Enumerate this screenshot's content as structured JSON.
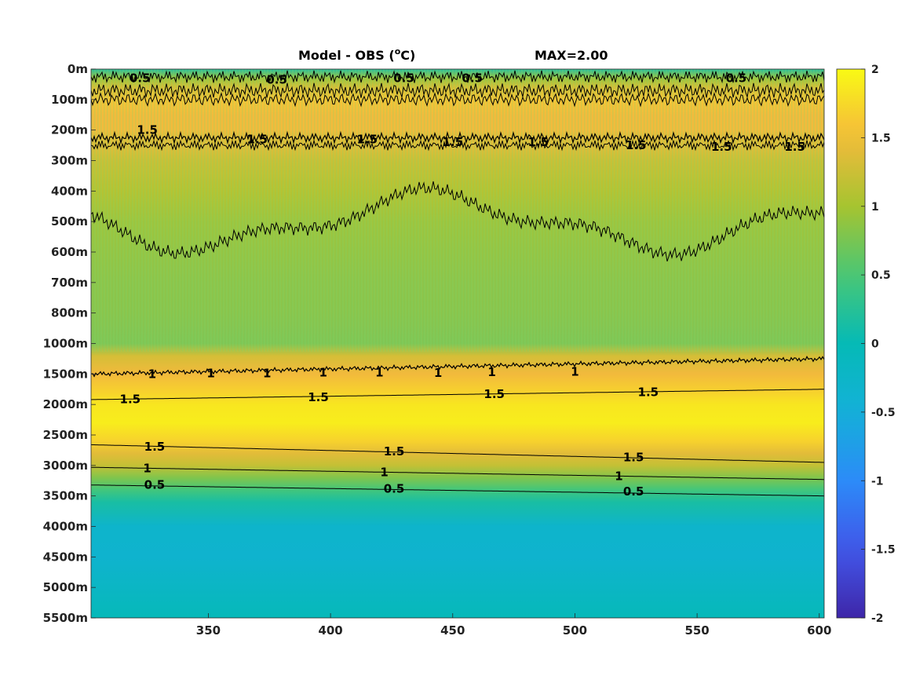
{
  "chart_data": {
    "type": "heatmap",
    "title": "Model - OBS (oC)",
    "title_parts": {
      "prefix": "Model - OBS (",
      "superscript": "o",
      "suffix": "C)"
    },
    "max_label": "MAX=2.00",
    "x_ticks": [
      350,
      400,
      450,
      500,
      550,
      600
    ],
    "xlim": [
      302,
      602
    ],
    "y_ticks": [
      "0m",
      "100m",
      "200m",
      "300m",
      "400m",
      "500m",
      "600m",
      "700m",
      "800m",
      "1000m",
      "1500m",
      "2000m",
      "2500m",
      "3000m",
      "3500m",
      "4000m",
      "4500m",
      "5000m",
      "5500m"
    ],
    "y_depths": [
      0,
      100,
      200,
      300,
      400,
      500,
      600,
      700,
      800,
      1000,
      1500,
      2000,
      2500,
      3000,
      3500,
      4000,
      4500,
      5000,
      5500
    ],
    "colorbar": {
      "ticks": [
        "2",
        "1.5",
        "1",
        "0.5",
        "0",
        "-0.5",
        "-1",
        "-1.5",
        "-2"
      ],
      "values": [
        2,
        1.5,
        1,
        0.5,
        0,
        -0.5,
        -1,
        -1.5,
        -2
      ],
      "range": [
        -2,
        2
      ]
    },
    "depth_profile": {
      "depth": [
        0,
        30,
        60,
        100,
        150,
        200,
        220,
        260,
        300,
        400,
        500,
        600,
        700,
        800,
        900,
        1000,
        1200,
        1500,
        1800,
        2000,
        2300,
        2600,
        2800,
        3000,
        3200,
        3400,
        3600,
        4000,
        4500,
        5000,
        5500
      ],
      "value": [
        0.1,
        0.9,
        1.3,
        1.6,
        1.5,
        1.5,
        1.4,
        1.35,
        1.2,
        1.05,
        0.9,
        0.85,
        0.8,
        0.78,
        0.75,
        0.72,
        1.3,
        1.5,
        1.7,
        1.85,
        1.9,
        1.7,
        1.4,
        1.2,
        0.8,
        0.45,
        0.15,
        -0.3,
        -0.35,
        -0.2,
        -0.05
      ]
    },
    "contour_labels": [
      {
        "text": "1",
        "x": 327,
        "depth": 1500
      },
      {
        "text": "1",
        "x": 351,
        "depth": 1490
      },
      {
        "text": "1",
        "x": 374,
        "depth": 1490
      },
      {
        "text": "1",
        "x": 397,
        "depth": 1475
      },
      {
        "text": "1",
        "x": 420,
        "depth": 1475
      },
      {
        "text": "1",
        "x": 444,
        "depth": 1480
      },
      {
        "text": "1",
        "x": 466,
        "depth": 1470
      },
      {
        "text": "1",
        "x": 500,
        "depth": 1465
      },
      {
        "text": "1.5",
        "x": 318,
        "depth": 1915
      },
      {
        "text": "1.5",
        "x": 395,
        "depth": 1880
      },
      {
        "text": "1.5",
        "x": 467,
        "depth": 1830
      },
      {
        "text": "1.5",
        "x": 530,
        "depth": 1800
      },
      {
        "text": "1.5",
        "x": 328,
        "depth": 2690
      },
      {
        "text": "1.5",
        "x": 426,
        "depth": 2770
      },
      {
        "text": "1.5",
        "x": 524,
        "depth": 2870
      },
      {
        "text": "1",
        "x": 325,
        "depth": 3045
      },
      {
        "text": "1",
        "x": 422,
        "depth": 3110
      },
      {
        "text": "1",
        "x": 518,
        "depth": 3175
      },
      {
        "text": "0.5",
        "x": 328,
        "depth": 3320
      },
      {
        "text": "0.5",
        "x": 426,
        "depth": 3380
      },
      {
        "text": "0.5",
        "x": 524,
        "depth": 3430
      },
      {
        "text": "0.5",
        "x": 322,
        "depth": 30
      },
      {
        "text": "0.5",
        "x": 378,
        "depth": 35
      },
      {
        "text": "0.5",
        "x": 430,
        "depth": 30
      },
      {
        "text": "0.5",
        "x": 458,
        "depth": 30
      },
      {
        "text": "0.5",
        "x": 566,
        "depth": 30
      },
      {
        "text": "1.5",
        "x": 325,
        "depth": 200
      },
      {
        "text": "1.5",
        "x": 370,
        "depth": 230
      },
      {
        "text": "1.5",
        "x": 415,
        "depth": 230
      },
      {
        "text": "1.5",
        "x": 450,
        "depth": 240
      },
      {
        "text": "1.5",
        "x": 485,
        "depth": 240
      },
      {
        "text": "1.5",
        "x": 525,
        "depth": 250
      },
      {
        "text": "1.5",
        "x": 560,
        "depth": 255
      },
      {
        "text": "1.5",
        "x": 590,
        "depth": 255
      }
    ]
  }
}
